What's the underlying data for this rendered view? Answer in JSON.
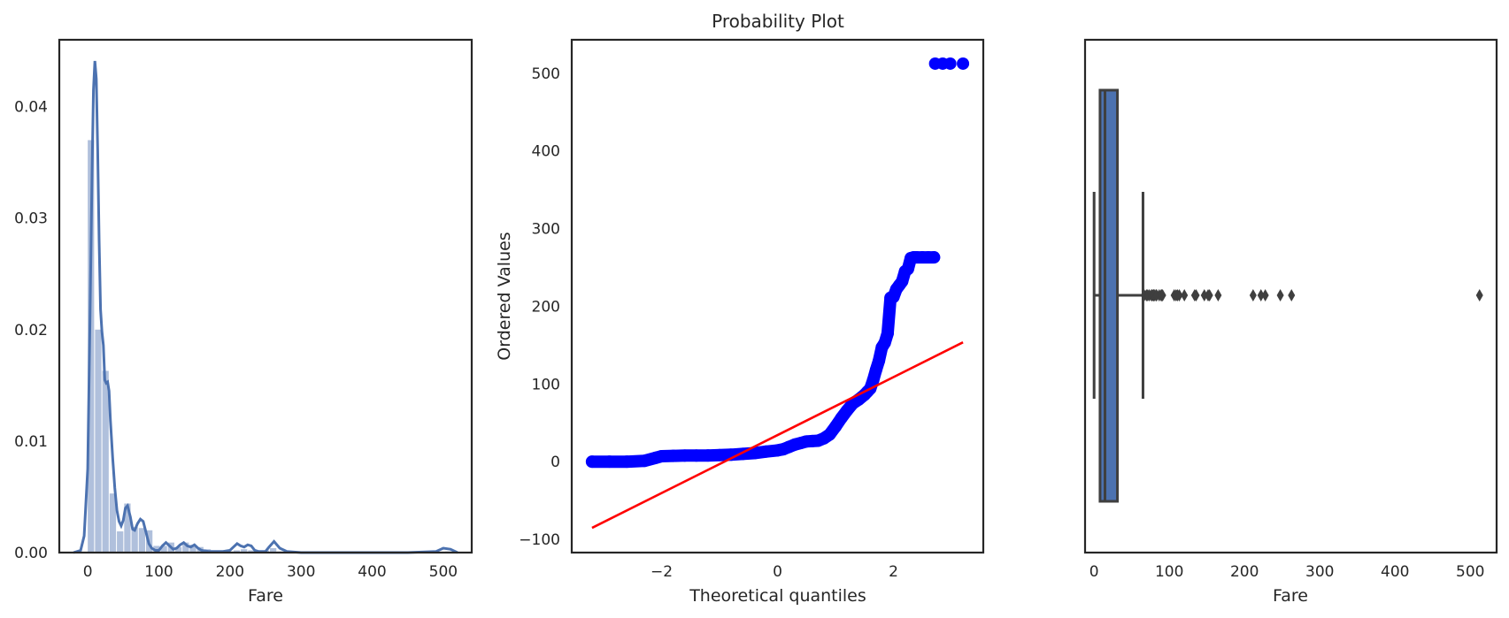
{
  "chart_data": [
    {
      "type": "histogram_kde",
      "xlabel": "Fare",
      "ylabel": "",
      "xlim": [
        -40,
        540
      ],
      "ylim": [
        0,
        0.046
      ],
      "xticks": [
        0,
        100,
        200,
        300,
        400,
        500
      ],
      "yticks": [
        0.0,
        0.01,
        0.02,
        0.03,
        0.04
      ],
      "ytick_labels": [
        "0.00",
        "0.01",
        "0.02",
        "0.03",
        "0.04"
      ],
      "colors": {
        "bars": "#b0c0dc",
        "kde": "#4c72b0"
      },
      "histogram": {
        "bin_width": 10.25,
        "bin_starts": [
          0,
          10.25,
          20.5,
          30.75,
          41.0,
          51.25,
          61.5,
          71.75,
          82.0,
          92.25,
          102.5,
          112.75,
          123.0,
          133.25,
          143.5,
          153.75,
          164.0,
          174.25,
          184.5,
          194.75,
          205.0,
          215.25,
          225.5,
          235.75,
          246.0,
          256.25,
          266.5,
          276.75,
          502.5
        ],
        "densities": [
          0.037,
          0.02,
          0.0163,
          0.0053,
          0.0019,
          0.0044,
          0.0023,
          0.0022,
          0.002,
          0.0006,
          0.0006,
          0.0009,
          0.0005,
          0.0009,
          0.0007,
          0.0005,
          0.0003,
          0.0001,
          0.0001,
          0.0001,
          0.0002,
          0.0003,
          0.0002,
          0.0001,
          0.0002,
          0.0004,
          0.0001,
          0.0001,
          0.0001
        ]
      },
      "kde": {
        "x": [
          -20,
          -10,
          -5,
          0,
          3,
          6,
          8,
          10,
          12,
          14,
          16,
          18,
          20,
          22,
          24,
          26,
          28,
          30,
          32,
          35,
          38,
          41,
          44,
          47,
          50,
          53,
          56,
          60,
          63,
          66,
          70,
          74,
          78,
          82,
          86,
          90,
          95,
          100,
          105,
          110,
          115,
          120,
          125,
          130,
          135,
          140,
          145,
          150,
          155,
          160,
          170,
          180,
          190,
          200,
          205,
          210,
          215,
          220,
          225,
          230,
          235,
          240,
          250,
          255,
          262,
          270,
          280,
          300,
          350,
          400,
          450,
          490,
          500,
          510,
          520
        ],
        "y": [
          0,
          0.0002,
          0.0015,
          0.0075,
          0.02,
          0.034,
          0.0415,
          0.0441,
          0.0425,
          0.036,
          0.028,
          0.0218,
          0.0198,
          0.0186,
          0.0155,
          0.0152,
          0.0153,
          0.0145,
          0.0118,
          0.0085,
          0.0058,
          0.0038,
          0.0028,
          0.0024,
          0.0029,
          0.004,
          0.0042,
          0.0032,
          0.0021,
          0.002,
          0.0026,
          0.003,
          0.0028,
          0.0018,
          0.0008,
          0.0004,
          0.0002,
          0.0002,
          0.0006,
          0.0009,
          0.0006,
          0.0003,
          0.0004,
          0.0007,
          0.0009,
          0.0006,
          0.0005,
          0.0007,
          0.0004,
          0.0002,
          0.0001,
          0.0001,
          0.0001,
          0.0002,
          0.0005,
          0.0008,
          0.0006,
          0.0005,
          0.0007,
          0.0006,
          0.0002,
          0.0001,
          0.0001,
          0.0005,
          0.001,
          0.0004,
          0.0001,
          0.0,
          0.0,
          0.0,
          0.0,
          0.0001,
          0.0004,
          0.0003,
          0.0
        ]
      }
    },
    {
      "type": "scatter",
      "title": "Probability Plot",
      "xlabel": "Theoretical quantiles",
      "ylabel": "Ordered Values",
      "xlim": [
        -3.55,
        3.55
      ],
      "ylim": [
        -117,
        543
      ],
      "xticks": [
        -2,
        0,
        2
      ],
      "xtick_labels": [
        "−2",
        "0",
        "2"
      ],
      "yticks": [
        -100,
        0,
        100,
        200,
        300,
        400,
        500
      ],
      "ytick_labels": [
        "−100",
        "0",
        "100",
        "200",
        "300",
        "400",
        "500"
      ],
      "colors": {
        "points": "#0000ff",
        "fit_line": "#ff0000"
      },
      "quantile_curve": {
        "x": [
          -3.2,
          -2.9,
          -2.6,
          -2.3,
          -2.1,
          -2.0,
          -1.8,
          -1.6,
          -1.4,
          -1.2,
          -1.0,
          -0.8,
          -0.6,
          -0.4,
          -0.2,
          0.0,
          0.1,
          0.2,
          0.3,
          0.4,
          0.5,
          0.6,
          0.7,
          0.8,
          0.9,
          1.0,
          1.1,
          1.2,
          1.3,
          1.4,
          1.5,
          1.55,
          1.6,
          1.65,
          1.7,
          1.75,
          1.8,
          1.85,
          1.9,
          1.95,
          2.0,
          2.05,
          2.1,
          2.15,
          2.2,
          2.25,
          2.3,
          2.35,
          2.4,
          2.5,
          2.6,
          2.7
        ],
        "y": [
          0,
          0,
          0,
          1,
          5,
          7,
          7.5,
          7.8,
          7.9,
          8,
          8.5,
          9,
          10,
          11,
          13,
          14.5,
          16,
          19,
          22,
          24,
          26,
          26.5,
          27,
          30,
          35,
          45,
          56,
          66,
          75,
          80,
          86,
          90,
          94,
          105,
          118,
          130,
          147,
          153,
          165,
          211,
          212,
          222,
          227,
          232,
          245,
          248,
          262,
          263,
          263,
          263,
          263,
          263
        ]
      },
      "top_points": {
        "x": [
          2.72,
          2.85,
          2.98,
          3.2
        ],
        "y": [
          512.3,
          512.3,
          512.3,
          512.3
        ]
      },
      "fit_line": {
        "x": [
          -3.2,
          3.2
        ],
        "y": [
          -85.2,
          153.6
        ]
      }
    },
    {
      "type": "boxplot",
      "xlabel": "Fare",
      "xlim": [
        -12,
        535
      ],
      "xticks": [
        0,
        100,
        200,
        300,
        400,
        500
      ],
      "colors": {
        "box": "#4c72b0",
        "edge": "#3f3f3f"
      },
      "box": {
        "whisker_low": 0,
        "q1": 7.91,
        "median": 14.45,
        "q3": 31.0,
        "whisker_high": 65.0
      },
      "outliers": [
        66.6,
        69.55,
        71.28,
        73.5,
        76.29,
        77.29,
        78.85,
        79.2,
        80,
        82.17,
        83.16,
        86.5,
        89.1,
        90,
        91.08,
        106.43,
        108.9,
        110.88,
        113.28,
        120,
        133.65,
        135.63,
        146.52,
        151.55,
        153.46,
        164.87,
        211.34,
        221.78,
        227.53,
        247.52,
        262.38,
        512.33
      ]
    }
  ]
}
